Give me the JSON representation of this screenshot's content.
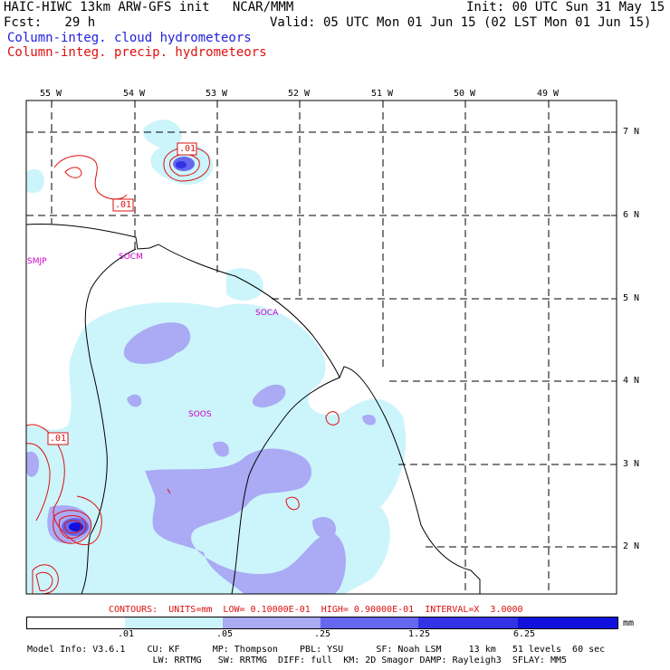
{
  "header": {
    "model_line": "HAIC-HIWC 13km ARW-GFS init   NCAR/MMM",
    "init": "Init: 00 UTC Sun 31 May 15",
    "fcst": "Fcst:   29 h",
    "valid": "Valid: 05 UTC Mon 01 Jun 15 (02 LST Mon 01 Jun 15)",
    "field_cloud": "Column-integ. cloud hydrometeors",
    "field_precip": "Column-integ. precip. hydrometeors",
    "colors": {
      "cloud": "#2020dd",
      "precip": "#dd1010"
    }
  },
  "map": {
    "lon_labels": [
      "55 W",
      "54 W",
      "53 W",
      "52 W",
      "51 W",
      "50 W",
      "49 W"
    ],
    "lat_labels": [
      "7 N",
      "6 N",
      "5 N",
      "4 N",
      "3 N",
      "2 N"
    ],
    "stations": [
      "SMJP",
      "SOCM",
      "SOCA",
      "SOOS"
    ],
    "contour_labels": [
      ".01",
      ".01",
      ".01"
    ]
  },
  "contour_info": "CONTOURS:  UNITS=mm  LOW= 0.10000E-01  HIGH= 0.90000E-01  INTERVAL=X  3.0000",
  "legend": {
    "ticks": [
      ".01",
      ".05",
      ".25",
      "1.25",
      "6.25"
    ],
    "units": "mm",
    "colors": [
      "#ffffff",
      "#ccf5fb",
      "#aaaaf5",
      "#6666ee",
      "#3333e6",
      "#1111dd"
    ]
  },
  "footer": {
    "line1": "Model Info: V3.6.1    CU: KF      MP: Thompson    PBL: YSU      SF: Noah LSM     13 km   51 levels  60 sec",
    "line2": "                       LW: RRTMG   SW: RRTMG  DIFF: full  KM: 2D Smagor DAMP: Rayleigh3  SFLAY: MM5"
  }
}
